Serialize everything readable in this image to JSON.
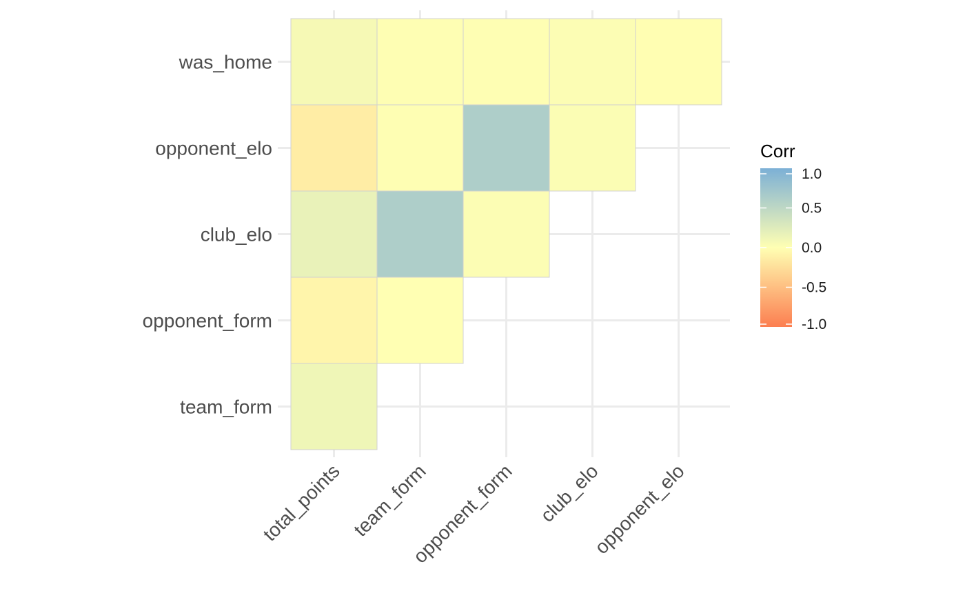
{
  "chart_data": {
    "type": "heatmap",
    "title": "",
    "xlabel": "",
    "ylabel": "",
    "x_categories": [
      "total_points",
      "team_form",
      "opponent_form",
      "club_elo",
      "opponent_elo"
    ],
    "y_categories": [
      "team_form",
      "opponent_form",
      "club_elo",
      "opponent_elo",
      "was_home"
    ],
    "cells": [
      {
        "x": "total_points",
        "y": "team_form",
        "value": 0.12
      },
      {
        "x": "total_points",
        "y": "opponent_form",
        "value": -0.08
      },
      {
        "x": "team_form",
        "y": "opponent_form",
        "value": 0.0
      },
      {
        "x": "total_points",
        "y": "club_elo",
        "value": 0.17
      },
      {
        "x": "team_form",
        "y": "club_elo",
        "value": 0.62
      },
      {
        "x": "opponent_form",
        "y": "club_elo",
        "value": 0.02
      },
      {
        "x": "total_points",
        "y": "opponent_elo",
        "value": -0.14
      },
      {
        "x": "team_form",
        "y": "opponent_elo",
        "value": 0.01
      },
      {
        "x": "opponent_form",
        "y": "opponent_elo",
        "value": 0.62
      },
      {
        "x": "club_elo",
        "y": "opponent_elo",
        "value": 0.03
      },
      {
        "x": "total_points",
        "y": "was_home",
        "value": 0.07
      },
      {
        "x": "team_form",
        "y": "was_home",
        "value": 0.01
      },
      {
        "x": "opponent_form",
        "y": "was_home",
        "value": 0.01
      },
      {
        "x": "club_elo",
        "y": "was_home",
        "value": 0.02
      },
      {
        "x": "opponent_elo",
        "y": "was_home",
        "value": -0.01
      }
    ],
    "color_scale": {
      "low": -1.0,
      "mid": 0.0,
      "high": 1.0,
      "low_color": "#fc7e50",
      "mid_color": "#ffffb3",
      "high_color": "#7cb0d6"
    },
    "legend": {
      "title": "Corr",
      "placement": "right",
      "ticks": [
        "1.0",
        "0.5",
        "0.0",
        "-0.5",
        "-1.0"
      ],
      "tick_values": [
        1.0,
        0.5,
        0.0,
        -0.5,
        -1.0
      ]
    },
    "grid": true,
    "tile_border_color": "#d0d0d0",
    "grid_color": "#ebebeb"
  }
}
